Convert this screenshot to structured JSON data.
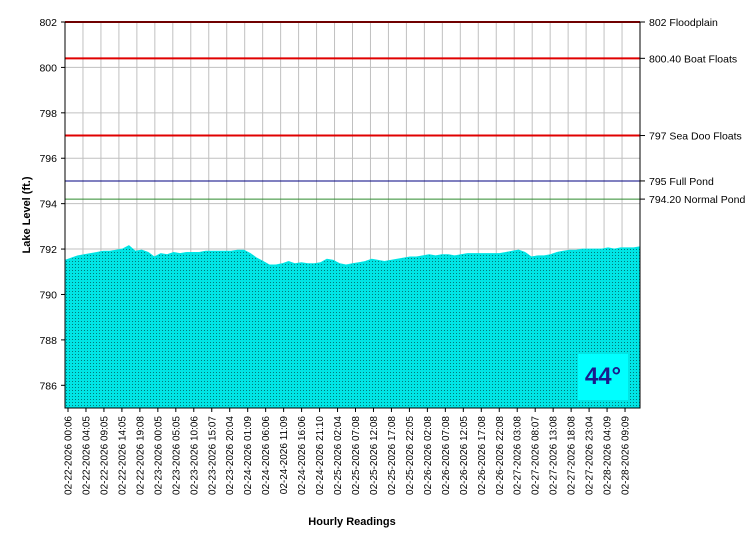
{
  "colors": {
    "fill": "#00e5e5",
    "fill_pattern": "#007a7a",
    "grid": "#c0c0c0",
    "floodplain": "#e00000",
    "boat": "#e00000",
    "seadoo": "#e00000",
    "fullpond": "#000080",
    "normalpond": "#2e8b2e",
    "badge_bg": "#00ffff",
    "badge_text": "#1a1a8c"
  },
  "badge": {
    "text": "44°"
  },
  "chart_data": {
    "type": "area",
    "title": "",
    "xlabel": "Hourly Readings",
    "ylabel": "Lake Level (ft.)",
    "ylim": [
      785,
      802
    ],
    "yticks": [
      "802",
      "800",
      "798",
      "796",
      "794",
      "792",
      "790",
      "788",
      "786"
    ],
    "ytick_values": [
      802,
      800,
      798,
      796,
      794,
      792,
      790,
      788,
      786
    ],
    "grid": true,
    "xticks": [
      "02-22-2026 00:06",
      "02-22-2026 04:05",
      "02-22-2026 09:05",
      "02-22-2026 14:05",
      "02-22-2026 19:08",
      "02-23-2026 00:05",
      "02-23-2026 05:05",
      "02-23-2026 10:06",
      "02-23-2026 15:07",
      "02-23-2026 20:04",
      "02-24-2026 01:09",
      "02-24-2026 06:06",
      "02-24-2026 11:09",
      "02-24-2026 16:06",
      "02-24-2026 21:10",
      "02-25-2026 02:04",
      "02-25-2026 07:08",
      "02-25-2026 12:08",
      "02-25-2026 17:08",
      "02-25-2026 22:05",
      "02-26-2026 02:08",
      "02-26-2026 07:08",
      "02-26-2026 12:05",
      "02-26-2026 17:08",
      "02-26-2026 22:08",
      "02-27-2026 03:08",
      "02-27-2026 08:07",
      "02-27-2026 13:08",
      "02-27-2026 18:08",
      "02-27-2026 23:04",
      "02-28-2026 04:09",
      "02-28-2026 09:09"
    ],
    "series": [
      {
        "values": [
          791.5,
          791.6,
          791.7,
          791.75,
          791.8,
          791.85,
          791.9,
          791.9,
          791.95,
          792.0,
          792.15,
          791.9,
          791.95,
          791.85,
          791.65,
          791.8,
          791.75,
          791.85,
          791.8,
          791.85,
          791.85,
          791.85,
          791.9,
          791.9,
          791.9,
          791.9,
          791.9,
          791.95,
          791.95,
          791.8,
          791.6,
          791.45,
          791.3,
          791.3,
          791.35,
          791.45,
          791.35,
          791.4,
          791.35,
          791.35,
          791.4,
          791.55,
          791.5,
          791.35,
          791.3,
          791.35,
          791.4,
          791.45,
          791.55,
          791.5,
          791.45,
          791.5,
          791.55,
          791.6,
          791.65,
          791.65,
          791.7,
          791.75,
          791.7,
          791.75,
          791.75,
          791.7,
          791.75,
          791.8,
          791.8,
          791.8,
          791.8,
          791.8,
          791.8,
          791.85,
          791.9,
          791.95,
          791.85,
          791.65,
          791.7,
          791.7,
          791.75,
          791.85,
          791.9,
          791.95,
          791.95,
          792.0,
          792.0,
          792.0,
          792.0,
          792.05,
          792.0,
          792.05,
          792.05,
          792.05,
          792.1
        ]
      }
    ],
    "reference_lines": [
      {
        "value": 802,
        "label": "802 Floodplain",
        "color_key": "floodplain"
      },
      {
        "value": 800.4,
        "label": "800.40 Boat Floats",
        "color_key": "boat"
      },
      {
        "value": 797,
        "label": "797 Sea Doo Floats",
        "color_key": "seadoo"
      },
      {
        "value": 795,
        "label": "795 Full Pond",
        "color_key": "fullpond"
      },
      {
        "value": 794.2,
        "label": "794.20 Normal Pond",
        "color_key": "normalpond"
      }
    ]
  }
}
